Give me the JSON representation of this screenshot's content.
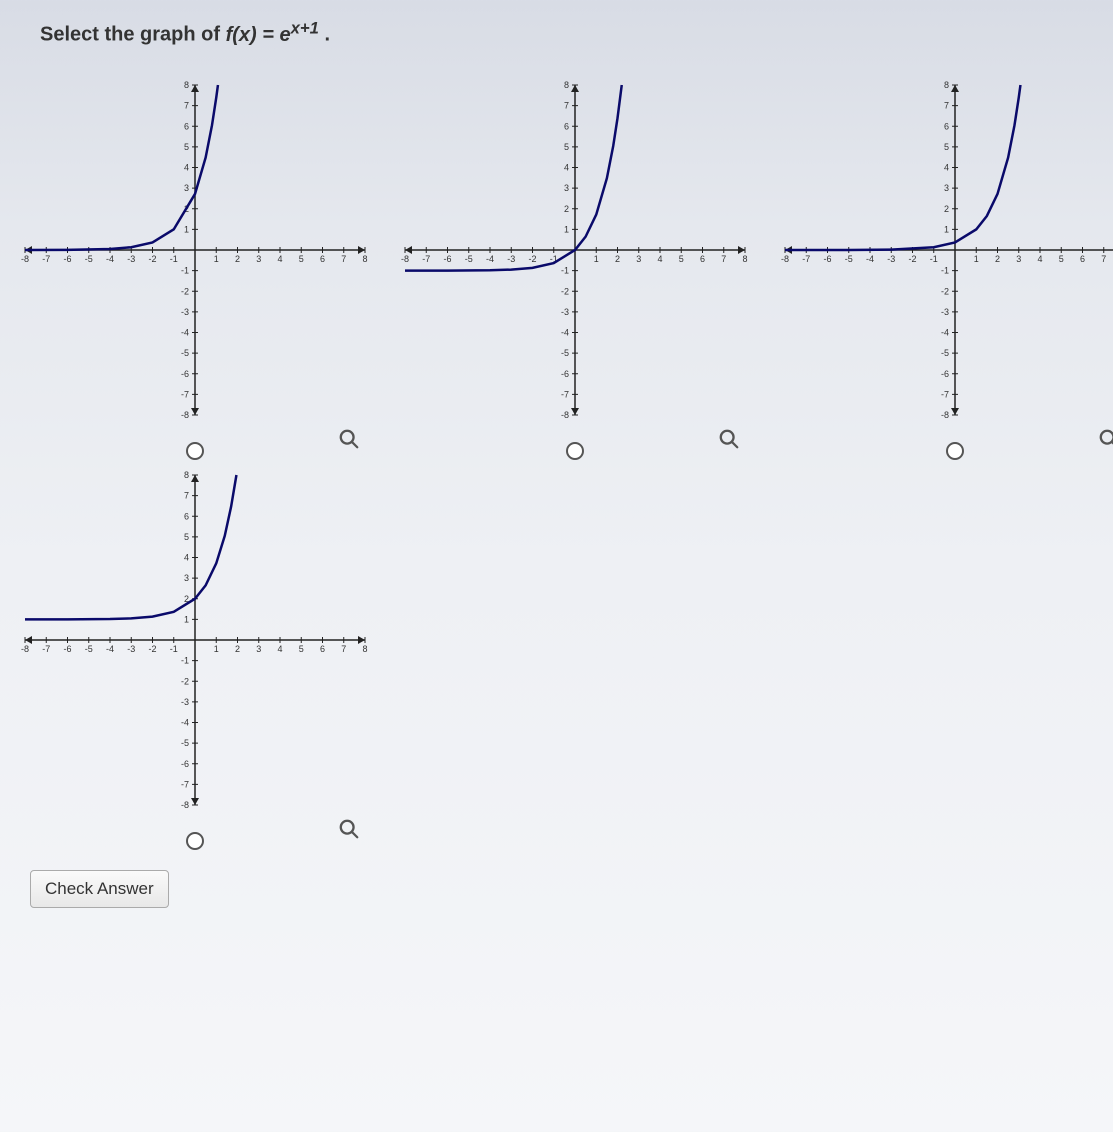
{
  "question_prefix": "Select the graph of ",
  "question_func": "f(x) = e",
  "question_exp": "x+1",
  "question_suffix": ".",
  "check_label": "Check Answer",
  "axis": {
    "xmin": -8,
    "xmax": 8,
    "ymin": -8,
    "ymax": 8,
    "x_ticks": [
      -8,
      -7,
      -6,
      -5,
      -4,
      -3,
      -2,
      -1,
      1,
      2,
      3,
      4,
      5,
      6,
      7,
      8
    ],
    "y_ticks": [
      -8,
      -7,
      -6,
      -5,
      -4,
      -3,
      -2,
      -1,
      1,
      2,
      3,
      4,
      5,
      6,
      7,
      8
    ],
    "axis_color": "#222222",
    "curve_color": "#0a0a6a",
    "curve_width": 2.5,
    "tick_fontsize": 9
  },
  "graphs": [
    {
      "id": "A",
      "type": "exponential",
      "description": "e^(x+1), y-intercept ~2.7, asymptote y=0",
      "points": [
        [
          -8,
          0.001
        ],
        [
          -6,
          0.007
        ],
        [
          -4,
          0.05
        ],
        [
          -3,
          0.135
        ],
        [
          -2,
          0.368
        ],
        [
          -1,
          1
        ],
        [
          0,
          2.718
        ],
        [
          0.5,
          4.48
        ],
        [
          0.8,
          6.05
        ],
        [
          1.0,
          7.39
        ],
        [
          1.08,
          8.0
        ]
      ]
    },
    {
      "id": "B",
      "type": "exponential",
      "description": "e^x - 1, asymptote y=-1",
      "points": [
        [
          -8,
          -0.9997
        ],
        [
          -6,
          -0.998
        ],
        [
          -4,
          -0.982
        ],
        [
          -3,
          -0.95
        ],
        [
          -2,
          -0.865
        ],
        [
          -1,
          -0.632
        ],
        [
          0,
          0
        ],
        [
          0.5,
          0.649
        ],
        [
          1,
          1.718
        ],
        [
          1.5,
          3.48
        ],
        [
          1.8,
          5.05
        ],
        [
          2.0,
          6.39
        ],
        [
          2.2,
          8.0
        ]
      ]
    },
    {
      "id": "C",
      "type": "exponential",
      "description": "e^(x-1), y-intercept ~0.37, asymptote y=0",
      "points": [
        [
          -8,
          0.0001
        ],
        [
          -5,
          0.0025
        ],
        [
          -3,
          0.018
        ],
        [
          -1,
          0.135
        ],
        [
          0,
          0.368
        ],
        [
          1,
          1
        ],
        [
          1.5,
          1.65
        ],
        [
          2,
          2.718
        ],
        [
          2.5,
          4.48
        ],
        [
          2.8,
          6.05
        ],
        [
          3.0,
          7.39
        ],
        [
          3.08,
          8.0
        ]
      ]
    },
    {
      "id": "D",
      "type": "exponential",
      "description": "e^x + 1, asymptote y=1",
      "points": [
        [
          -8,
          1.0003
        ],
        [
          -6,
          1.0025
        ],
        [
          -4,
          1.018
        ],
        [
          -3,
          1.05
        ],
        [
          -2,
          1.135
        ],
        [
          -1,
          1.368
        ],
        [
          0,
          2
        ],
        [
          0.5,
          2.649
        ],
        [
          1,
          3.718
        ],
        [
          1.4,
          5.05
        ],
        [
          1.7,
          6.47
        ],
        [
          1.95,
          8.0
        ]
      ]
    }
  ],
  "colors": {
    "background": "transparent",
    "zoom_icon": "#555555",
    "radio_border": "#555555"
  }
}
